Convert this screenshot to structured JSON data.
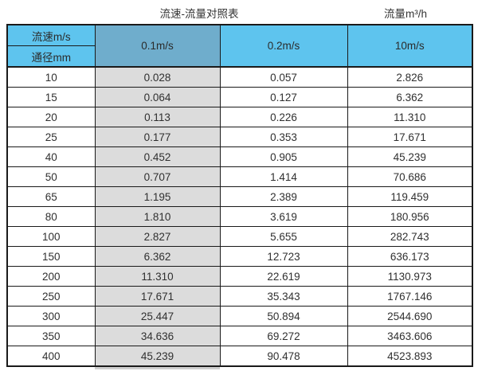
{
  "colors": {
    "header_blue": "#5ec4ee",
    "header_blue_dark": "#6fadcc",
    "col_gray": "#dcdcdc",
    "border": "#1a1a1a",
    "text": "#333333"
  },
  "chart_data": {
    "type": "table",
    "title": "流速-流量对照表",
    "right_title": "流量m³/h",
    "layout": {
      "grid": "full-borders",
      "highlighted_column": "0.1m/s"
    },
    "header": {
      "top_left_top": "流速m/s",
      "top_left_bottom": "通径mm",
      "velocity_columns": [
        "0.1m/s",
        "0.2m/s",
        "10m/s"
      ]
    },
    "rows": [
      {
        "diameter_mm": "10",
        "values": [
          "0.028",
          "0.057",
          "2.826"
        ]
      },
      {
        "diameter_mm": "15",
        "values": [
          "0.064",
          "0.127",
          "6.362"
        ]
      },
      {
        "diameter_mm": "20",
        "values": [
          "0.113",
          "0.226",
          "11.310"
        ]
      },
      {
        "diameter_mm": "25",
        "values": [
          "0.177",
          "0.353",
          "17.671"
        ]
      },
      {
        "diameter_mm": "40",
        "values": [
          "0.452",
          "0.905",
          "45.239"
        ]
      },
      {
        "diameter_mm": "50",
        "values": [
          "0.707",
          "1.414",
          "70.686"
        ]
      },
      {
        "diameter_mm": "65",
        "values": [
          "1.195",
          "2.389",
          "119.459"
        ]
      },
      {
        "diameter_mm": "80",
        "values": [
          "1.810",
          "3.619",
          "180.956"
        ]
      },
      {
        "diameter_mm": "100",
        "values": [
          "2.827",
          "5.655",
          "282.743"
        ]
      },
      {
        "diameter_mm": "150",
        "values": [
          "6.362",
          "12.723",
          "636.173"
        ]
      },
      {
        "diameter_mm": "200",
        "values": [
          "11.310",
          "22.619",
          "1130.973"
        ]
      },
      {
        "diameter_mm": "250",
        "values": [
          "17.671",
          "35.343",
          "1767.146"
        ]
      },
      {
        "diameter_mm": "300",
        "values": [
          "25.447",
          "50.894",
          "2544.690"
        ]
      },
      {
        "diameter_mm": "350",
        "values": [
          "34.636",
          "69.272",
          "3463.606"
        ]
      },
      {
        "diameter_mm": "400",
        "values": [
          "45.239",
          "90.478",
          "4523.893"
        ]
      }
    ]
  }
}
